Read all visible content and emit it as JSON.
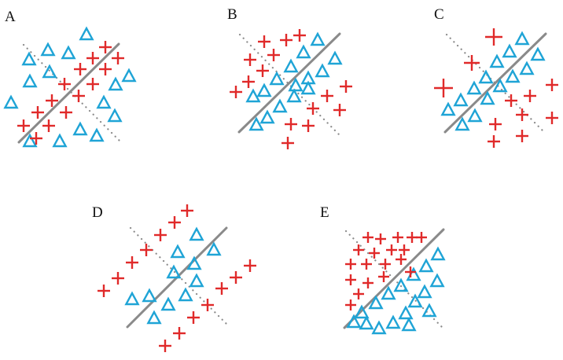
{
  "colors": {
    "triangle": "#1fa4d6",
    "plus": "#e02a2a",
    "boundary": "#8a8a8a",
    "dotted": "#8a8a8a",
    "label": "#111111"
  },
  "icons": {
    "triangle": "triangle-icon",
    "plus": "plus-icon"
  },
  "panels": [
    {
      "id": "A",
      "label": "A"
    },
    {
      "id": "B",
      "label": "B"
    },
    {
      "id": "C",
      "label": "C"
    },
    {
      "id": "D",
      "label": "D"
    },
    {
      "id": "E",
      "label": "E"
    }
  ]
}
